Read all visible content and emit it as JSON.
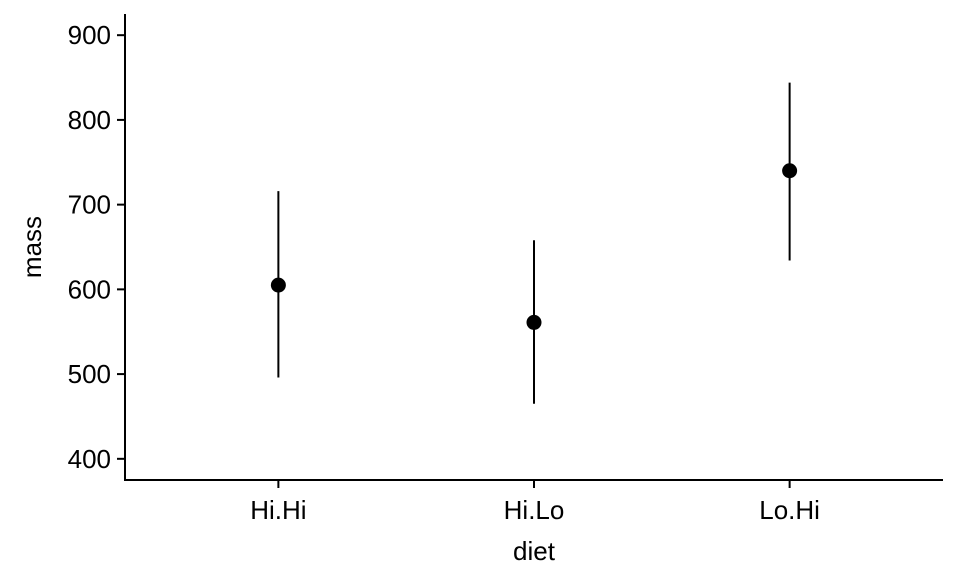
{
  "chart_data": {
    "type": "scatter",
    "title": "",
    "xlabel": "diet",
    "ylabel": "mass",
    "categories": [
      "Hi.Hi",
      "Hi.Lo",
      "Lo.Hi"
    ],
    "series": [
      {
        "points": [
          {
            "x": "Hi.Hi",
            "y": 605,
            "ymin": 496,
            "ymax": 716
          },
          {
            "x": "Hi.Lo",
            "y": 561,
            "ymin": 465,
            "ymax": 658
          },
          {
            "x": "Lo.Hi",
            "y": 740,
            "ymin": 634,
            "ymax": 844
          }
        ]
      }
    ],
    "ylim": [
      375,
      925
    ],
    "yticks": [
      400,
      500,
      600,
      700,
      800,
      900
    ],
    "grid": false,
    "legend": "none"
  }
}
